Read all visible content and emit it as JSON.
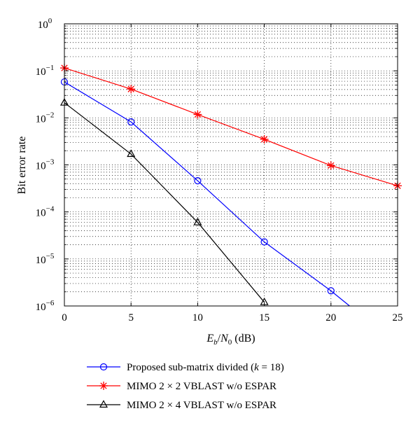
{
  "chart_data": {
    "type": "line",
    "xlabel": "E_b/N_0 (dB)",
    "xlabel_parts": {
      "E": "E",
      "b": "b",
      "slash": "/",
      "N": "N",
      "zero": "0",
      "unit": " (dB)"
    },
    "ylabel": "Bit error rate",
    "x_ticks": [
      "0",
      "5",
      "10",
      "15",
      "20",
      "25"
    ],
    "y_ticks": [
      {
        "base": "10",
        "exp": "0"
      },
      {
        "base": "10",
        "exp": "−1"
      },
      {
        "base": "10",
        "exp": "−2"
      },
      {
        "base": "10",
        "exp": "−3"
      },
      {
        "base": "10",
        "exp": "−4"
      },
      {
        "base": "10",
        "exp": "−5"
      },
      {
        "base": "10",
        "exp": "−6"
      }
    ],
    "xlim": [
      0,
      25
    ],
    "ylim": [
      1e-06,
      1
    ],
    "y_scale": "log",
    "grid": true,
    "legend_position": "bottom",
    "series": [
      {
        "name": "Proposed sub-matrix divided (k = 18)",
        "name_parts": {
          "pre": "Proposed sub-matrix divided (",
          "k": "k",
          "post": " = 18)"
        },
        "color": "#0000ff",
        "marker": "circle",
        "x": [
          0,
          5,
          10,
          15,
          20,
          21.4
        ],
        "y": [
          0.058,
          0.0082,
          0.00046,
          2.3e-05,
          2.1e-06,
          1e-06
        ],
        "marker_count": 5
      },
      {
        "name": "MIMO 2 × 2 VBLAST w/o ESPAR",
        "color": "#ff0000",
        "marker": "star",
        "x": [
          0,
          5,
          10,
          15,
          20,
          25
        ],
        "y": [
          0.115,
          0.041,
          0.0118,
          0.0035,
          0.00097,
          0.00036
        ],
        "marker_count": 6
      },
      {
        "name": "MIMO 2 × 4 VBLAST w/o ESPAR",
        "color": "#000000",
        "marker": "triangle",
        "x": [
          0,
          5,
          10,
          15
        ],
        "y": [
          0.021,
          0.0017,
          6e-05,
          1.2e-06
        ],
        "marker_count": 4
      }
    ]
  }
}
